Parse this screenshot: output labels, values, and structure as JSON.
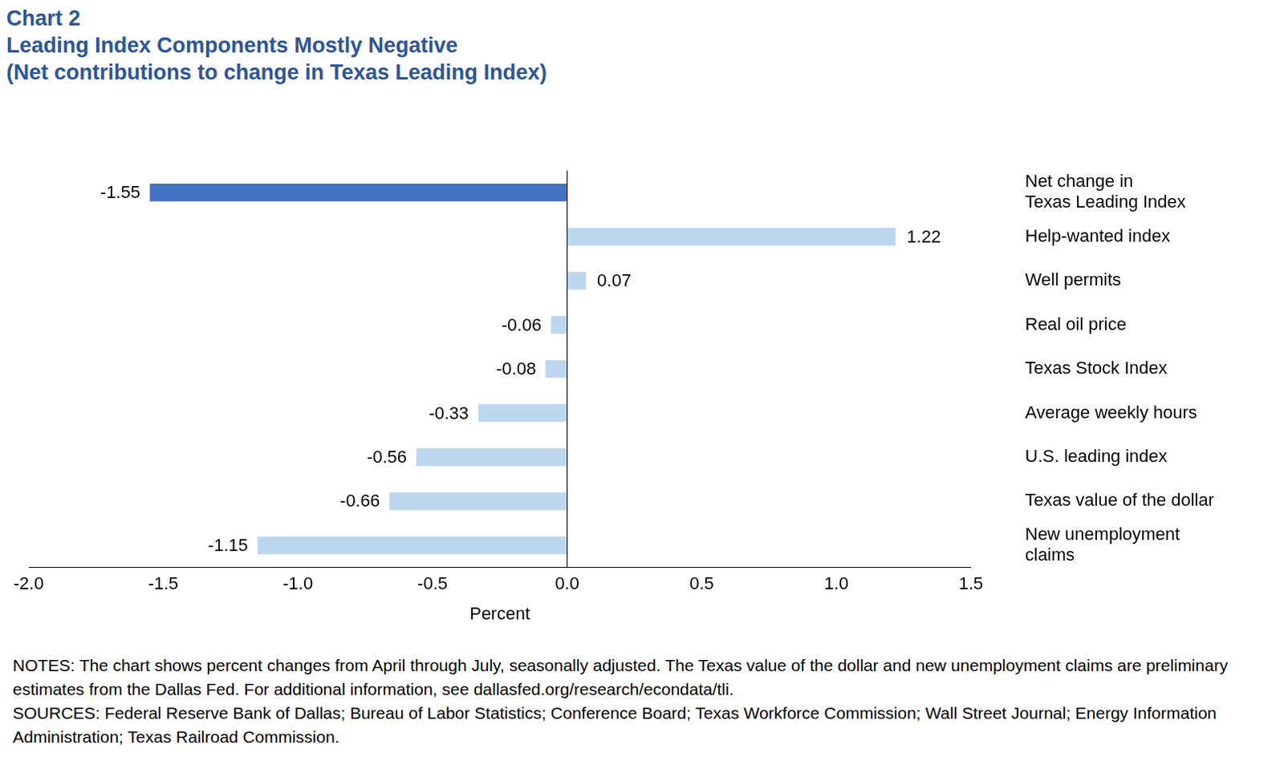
{
  "chart_data": {
    "type": "bar",
    "title": "Chart 2",
    "subtitle": [
      "Leading Index Components Mostly Negative",
      "(Net contributions to change in Texas Leading Index)"
    ],
    "orientation": "horizontal",
    "categories": [
      [
        "Net change in",
        "Texas Leading Index"
      ],
      "Help-wanted index",
      "Well permits",
      "Real oil price",
      "Texas Stock Index",
      "Average weekly hours",
      "U.S. leading index",
      "Texas value of the dollar",
      [
        "New unemployment",
        "claims"
      ]
    ],
    "values": [
      -1.55,
      1.22,
      0.07,
      -0.06,
      -0.08,
      -0.33,
      -0.56,
      -0.66,
      -1.15
    ],
    "colors": [
      "#4472c4",
      "#bdd7ee",
      "#bdd7ee",
      "#bdd7ee",
      "#bdd7ee",
      "#bdd7ee",
      "#bdd7ee",
      "#bdd7ee",
      "#bdd7ee"
    ],
    "data_labels": true,
    "x_label": "Percent",
    "xlim": [
      -2,
      1.5
    ],
    "xticks": [
      {
        "value": -2,
        "label": "-2.0"
      },
      {
        "value": -1.5,
        "label": "-1.5"
      },
      {
        "value": -1,
        "label": "-1.0"
      },
      {
        "value": -0.5,
        "label": "-0.5"
      },
      {
        "value": 0,
        "label": "0.0"
      },
      0.5,
      {
        "value": 1,
        "label": "1.0"
      },
      1.5
    ],
    "grid": false,
    "notes": "NOTES: The chart shows percent changes from April through July, seasonally adjusted. The Texas value of the dollar and new unemployment claims are preliminary estimates from the Dallas Fed. For additional information, see dallasfed.org/research/econdata/tli.",
    "sources": "SOURCES: Federal Reserve Bank of Dallas; Bureau of Labor Statistics; Conference Board; Texas Workforce Commission; Wall Street Journal; Energy Information Administration; Texas Railroad Commission."
  }
}
